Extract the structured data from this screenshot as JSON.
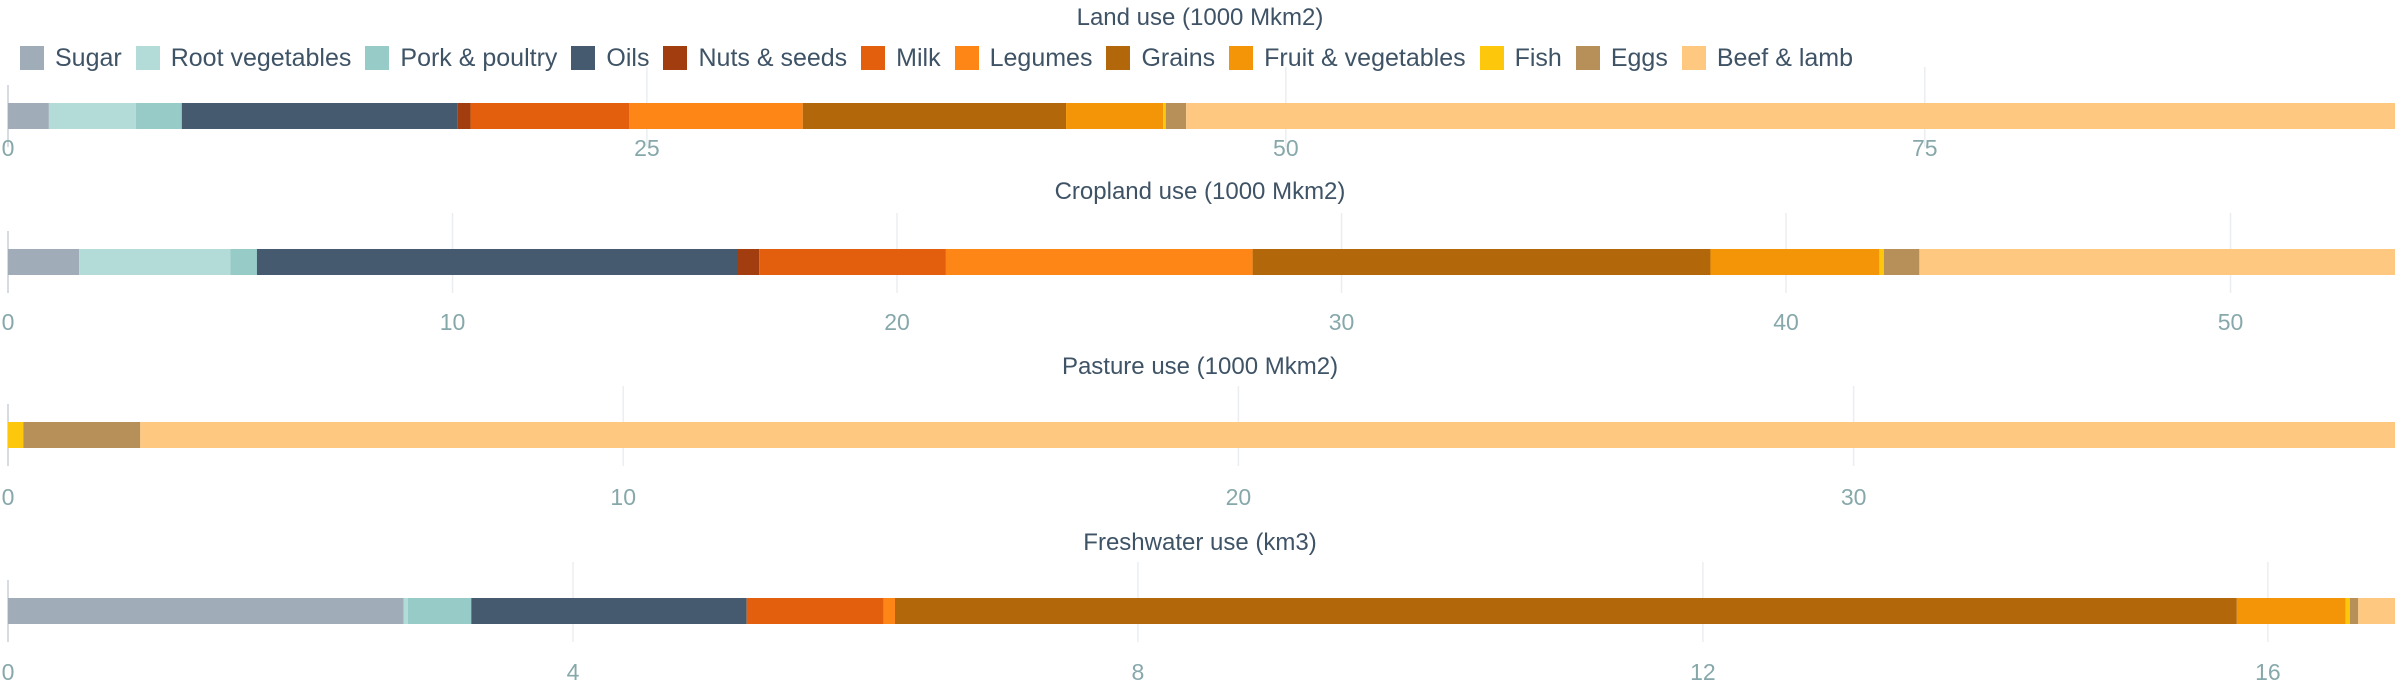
{
  "colors": {
    "Sugar": "#a0acb8",
    "Root vegetables": "#b3dcd9",
    "Pork & poultry": "#97cbc8",
    "Oils": "#455a6e",
    "Nuts & seeds": "#a13d0e",
    "Milk": "#e35f0d",
    "Legumes": "#fd8616",
    "Grains": "#b1670a",
    "Fruit & vegetables": "#f39507",
    "Fish": "#fdc80c",
    "Eggs": "#b69058",
    "Beef & lamb": "#fec880"
  },
  "legend": [
    "Sugar",
    "Root vegetables",
    "Pork & poultry",
    "Oils",
    "Nuts & seeds",
    "Milk",
    "Legumes",
    "Grains",
    "Fruit & vegetables",
    "Fish",
    "Eggs",
    "Beef & lamb"
  ],
  "chart_data": [
    {
      "type": "bar",
      "orientation": "horizontal",
      "stacked": true,
      "title": "Land use (1000 Mkm2)",
      "xlim": [
        0,
        93.4
      ],
      "xticks": [
        0,
        25,
        50,
        75
      ],
      "grid": true,
      "series": [
        {
          "name": "Sugar",
          "value": 1.6
        },
        {
          "name": "Root vegetables",
          "value": 3.4
        },
        {
          "name": "Pork & poultry",
          "value": 1.8
        },
        {
          "name": "Oils",
          "value": 10.8
        },
        {
          "name": "Nuts & seeds",
          "value": 0.5
        },
        {
          "name": "Milk",
          "value": 6.2
        },
        {
          "name": "Legumes",
          "value": 6.8
        },
        {
          "name": "Grains",
          "value": 10.3
        },
        {
          "name": "Fruit & vegetables",
          "value": 3.8
        },
        {
          "name": "Fish",
          "value": 0.1
        },
        {
          "name": "Eggs",
          "value": 0.8
        },
        {
          "name": "Beef & lamb",
          "value": 47.3
        }
      ]
    },
    {
      "type": "bar",
      "orientation": "horizontal",
      "stacked": true,
      "title": "Cropland use (1000 Mkm2)",
      "xlim": [
        0,
        53.7
      ],
      "xticks": [
        0,
        10,
        20,
        30,
        40,
        50
      ],
      "grid": true,
      "series": [
        {
          "name": "Sugar",
          "value": 1.6
        },
        {
          "name": "Root vegetables",
          "value": 3.4
        },
        {
          "name": "Pork & poultry",
          "value": 0.6
        },
        {
          "name": "Oils",
          "value": 10.8
        },
        {
          "name": "Nuts & seeds",
          "value": 0.5
        },
        {
          "name": "Milk",
          "value": 4.2
        },
        {
          "name": "Legumes",
          "value": 6.9
        },
        {
          "name": "Grains",
          "value": 10.3
        },
        {
          "name": "Fruit & vegetables",
          "value": 3.8
        },
        {
          "name": "Fish",
          "value": 0.1
        },
        {
          "name": "Eggs",
          "value": 0.8
        },
        {
          "name": "Beef & lamb",
          "value": 10.7
        }
      ]
    },
    {
      "type": "bar",
      "orientation": "horizontal",
      "stacked": true,
      "title": "Pasture use (1000 Mkm2)",
      "xlim": [
        0,
        38.8
      ],
      "xticks": [
        0,
        10,
        20,
        30
      ],
      "grid": true,
      "series": [
        {
          "name": "Fish",
          "value": 0.25
        },
        {
          "name": "Eggs",
          "value": 1.9
        },
        {
          "name": "Beef & lamb",
          "value": 36.65
        }
      ]
    },
    {
      "type": "bar",
      "orientation": "horizontal",
      "stacked": true,
      "title": "Freshwater use (km3)",
      "xlim": [
        0,
        16.9
      ],
      "xticks": [
        0,
        4,
        8,
        12,
        16
      ],
      "grid": true,
      "series": [
        {
          "name": "Sugar",
          "value": 2.8
        },
        {
          "name": "Root vegetables",
          "value": 0.03
        },
        {
          "name": "Pork & poultry",
          "value": 0.45
        },
        {
          "name": "Oils",
          "value": 1.95
        },
        {
          "name": "Milk",
          "value": 0.97
        },
        {
          "name": "Legumes",
          "value": 0.08
        },
        {
          "name": "Grains",
          "value": 9.5
        },
        {
          "name": "Fruit & vegetables",
          "value": 0.77
        },
        {
          "name": "Fish",
          "value": 0.03
        },
        {
          "name": "Eggs",
          "value": 0.06
        },
        {
          "name": "Beef & lamb",
          "value": 0.26
        }
      ]
    }
  ]
}
